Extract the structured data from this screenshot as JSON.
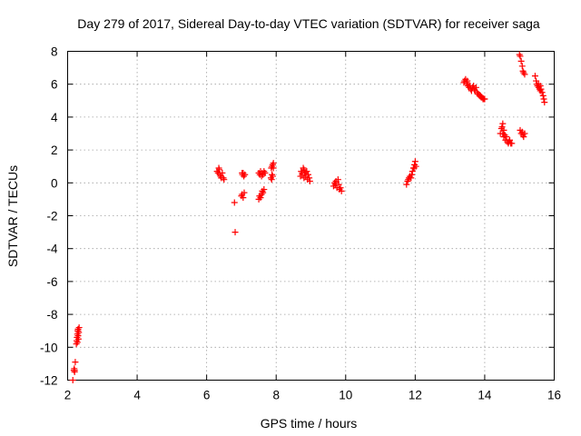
{
  "chart_data": {
    "type": "scatter",
    "title": "Day 279 of 2017, Sidereal Day-to-day VTEC variation (SDTVAR) for receiver saga",
    "xlabel": "GPS time / hours",
    "ylabel": "SDTVAR / TECUs",
    "xlim": [
      2,
      16
    ],
    "ylim": [
      -12,
      8
    ],
    "xticks": [
      2,
      4,
      6,
      8,
      10,
      12,
      14,
      16
    ],
    "yticks": [
      -12,
      -10,
      -8,
      -6,
      -4,
      -2,
      0,
      2,
      4,
      6,
      8
    ],
    "grid": true,
    "marker": "plus",
    "color": "#ff0000",
    "series": [
      {
        "name": "SDTVAR",
        "points": [
          [
            2.15,
            -12.0
          ],
          [
            2.18,
            -11.4
          ],
          [
            2.19,
            -11.3
          ],
          [
            2.2,
            -11.5
          ],
          [
            2.22,
            -10.9
          ],
          [
            2.2,
            -11.4
          ],
          [
            2.25,
            -9.8
          ],
          [
            2.26,
            -9.6
          ],
          [
            2.27,
            -9.4
          ],
          [
            2.28,
            -9.2
          ],
          [
            2.29,
            -9.0
          ],
          [
            2.3,
            -9.3
          ],
          [
            2.31,
            -9.5
          ],
          [
            2.3,
            -8.9
          ],
          [
            2.33,
            -8.8
          ],
          [
            2.32,
            -9.1
          ],
          [
            2.28,
            -9.7
          ],
          [
            2.3,
            -9.0
          ],
          [
            6.3,
            0.7
          ],
          [
            6.33,
            0.6
          ],
          [
            6.35,
            0.9
          ],
          [
            6.38,
            0.5
          ],
          [
            6.4,
            0.4
          ],
          [
            6.42,
            0.3
          ],
          [
            6.45,
            0.6
          ],
          [
            6.48,
            0.3
          ],
          [
            6.5,
            0.2
          ],
          [
            6.36,
            0.8
          ],
          [
            6.8,
            -1.2
          ],
          [
            6.82,
            -3.0
          ],
          [
            7.0,
            -0.8
          ],
          [
            7.02,
            -0.7
          ],
          [
            7.05,
            -0.9
          ],
          [
            7.03,
            0.5
          ],
          [
            7.05,
            0.6
          ],
          [
            7.07,
            0.4
          ],
          [
            7.1,
            0.5
          ],
          [
            7.08,
            -0.6
          ],
          [
            7.02,
            0.6
          ],
          [
            7.5,
            -1.0
          ],
          [
            7.52,
            -0.8
          ],
          [
            7.55,
            -0.9
          ],
          [
            7.58,
            -0.7
          ],
          [
            7.6,
            -0.5
          ],
          [
            7.62,
            -0.6
          ],
          [
            7.65,
            -0.4
          ],
          [
            7.5,
            0.6
          ],
          [
            7.53,
            0.5
          ],
          [
            7.55,
            0.7
          ],
          [
            7.58,
            0.4
          ],
          [
            7.6,
            0.6
          ],
          [
            7.62,
            0.5
          ],
          [
            7.65,
            0.7
          ],
          [
            7.68,
            0.6
          ],
          [
            7.85,
            0.3
          ],
          [
            7.87,
            0.2
          ],
          [
            7.88,
            0.5
          ],
          [
            7.86,
            0.9
          ],
          [
            7.88,
            1.0
          ],
          [
            7.9,
            1.1
          ],
          [
            7.92,
            0.9
          ],
          [
            7.9,
            0.4
          ],
          [
            7.92,
            1.2
          ],
          [
            8.7,
            0.4
          ],
          [
            8.72,
            0.7
          ],
          [
            8.75,
            0.5
          ],
          [
            8.78,
            0.9
          ],
          [
            8.8,
            0.3
          ],
          [
            8.82,
            0.6
          ],
          [
            8.85,
            0.4
          ],
          [
            8.88,
            0.7
          ],
          [
            8.9,
            0.2
          ],
          [
            8.92,
            0.5
          ],
          [
            8.95,
            0.3
          ],
          [
            8.97,
            0.1
          ],
          [
            8.8,
            0.8
          ],
          [
            8.85,
            0.6
          ],
          [
            8.75,
            0.6
          ],
          [
            9.65,
            -0.2
          ],
          [
            9.68,
            0.0
          ],
          [
            9.7,
            -0.1
          ],
          [
            9.72,
            0.1
          ],
          [
            9.75,
            -0.3
          ],
          [
            9.78,
            0.2
          ],
          [
            9.8,
            -0.1
          ],
          [
            9.82,
            -0.4
          ],
          [
            9.85,
            -0.3
          ],
          [
            9.88,
            -0.5
          ],
          [
            9.72,
            0.0
          ],
          [
            11.75,
            -0.1
          ],
          [
            11.78,
            0.1
          ],
          [
            11.8,
            0.2
          ],
          [
            11.82,
            0.3
          ],
          [
            11.85,
            0.4
          ],
          [
            11.88,
            0.3
          ],
          [
            11.9,
            0.5
          ],
          [
            11.92,
            0.7
          ],
          [
            11.95,
            0.9
          ],
          [
            11.98,
            1.1
          ],
          [
            12.0,
            1.3
          ],
          [
            12.02,
            1.0
          ],
          [
            11.97,
            0.9
          ],
          [
            13.4,
            6.1
          ],
          [
            13.42,
            6.2
          ],
          [
            13.45,
            6.3
          ],
          [
            13.48,
            6.1
          ],
          [
            13.5,
            6.0
          ],
          [
            13.52,
            5.9
          ],
          [
            13.55,
            5.8
          ],
          [
            13.58,
            5.9
          ],
          [
            13.6,
            5.7
          ],
          [
            13.62,
            5.6
          ],
          [
            13.65,
            5.8
          ],
          [
            13.68,
            5.9
          ],
          [
            13.7,
            5.7
          ],
          [
            13.72,
            5.6
          ],
          [
            13.75,
            5.8
          ],
          [
            13.78,
            5.5
          ],
          [
            13.8,
            5.4
          ],
          [
            13.82,
            5.4
          ],
          [
            13.85,
            5.3
          ],
          [
            13.88,
            5.3
          ],
          [
            13.9,
            5.2
          ],
          [
            13.92,
            5.2
          ],
          [
            13.95,
            5.1
          ],
          [
            13.98,
            5.1
          ],
          [
            14.0,
            5.1
          ],
          [
            13.5,
            6.2
          ],
          [
            14.45,
            3.0
          ],
          [
            14.48,
            3.3
          ],
          [
            14.5,
            3.4
          ],
          [
            14.52,
            3.6
          ],
          [
            14.55,
            3.2
          ],
          [
            14.58,
            2.9
          ],
          [
            14.6,
            2.6
          ],
          [
            14.62,
            2.8
          ],
          [
            14.65,
            2.5
          ],
          [
            14.68,
            2.4
          ],
          [
            14.7,
            2.5
          ],
          [
            14.72,
            2.6
          ],
          [
            14.75,
            2.4
          ],
          [
            14.78,
            2.4
          ],
          [
            14.52,
            3.0
          ],
          [
            14.55,
            2.8
          ],
          [
            15.0,
            7.8
          ],
          [
            15.02,
            7.7
          ],
          [
            15.05,
            7.4
          ],
          [
            15.08,
            7.1
          ],
          [
            15.1,
            6.8
          ],
          [
            15.12,
            6.7
          ],
          [
            15.15,
            6.6
          ],
          [
            15.02,
            3.2
          ],
          [
            15.05,
            3.0
          ],
          [
            15.08,
            3.1
          ],
          [
            15.1,
            2.9
          ],
          [
            15.12,
            2.8
          ],
          [
            15.15,
            3.0
          ],
          [
            15.45,
            6.5
          ],
          [
            15.48,
            6.2
          ],
          [
            15.5,
            6.0
          ],
          [
            15.52,
            5.9
          ],
          [
            15.55,
            5.8
          ],
          [
            15.58,
            5.7
          ],
          [
            15.6,
            5.6
          ],
          [
            15.62,
            5.7
          ],
          [
            15.65,
            5.5
          ],
          [
            15.68,
            5.3
          ],
          [
            15.7,
            5.1
          ],
          [
            15.72,
            4.9
          ],
          [
            15.55,
            6.0
          ],
          [
            15.6,
            5.9
          ]
        ]
      }
    ]
  }
}
